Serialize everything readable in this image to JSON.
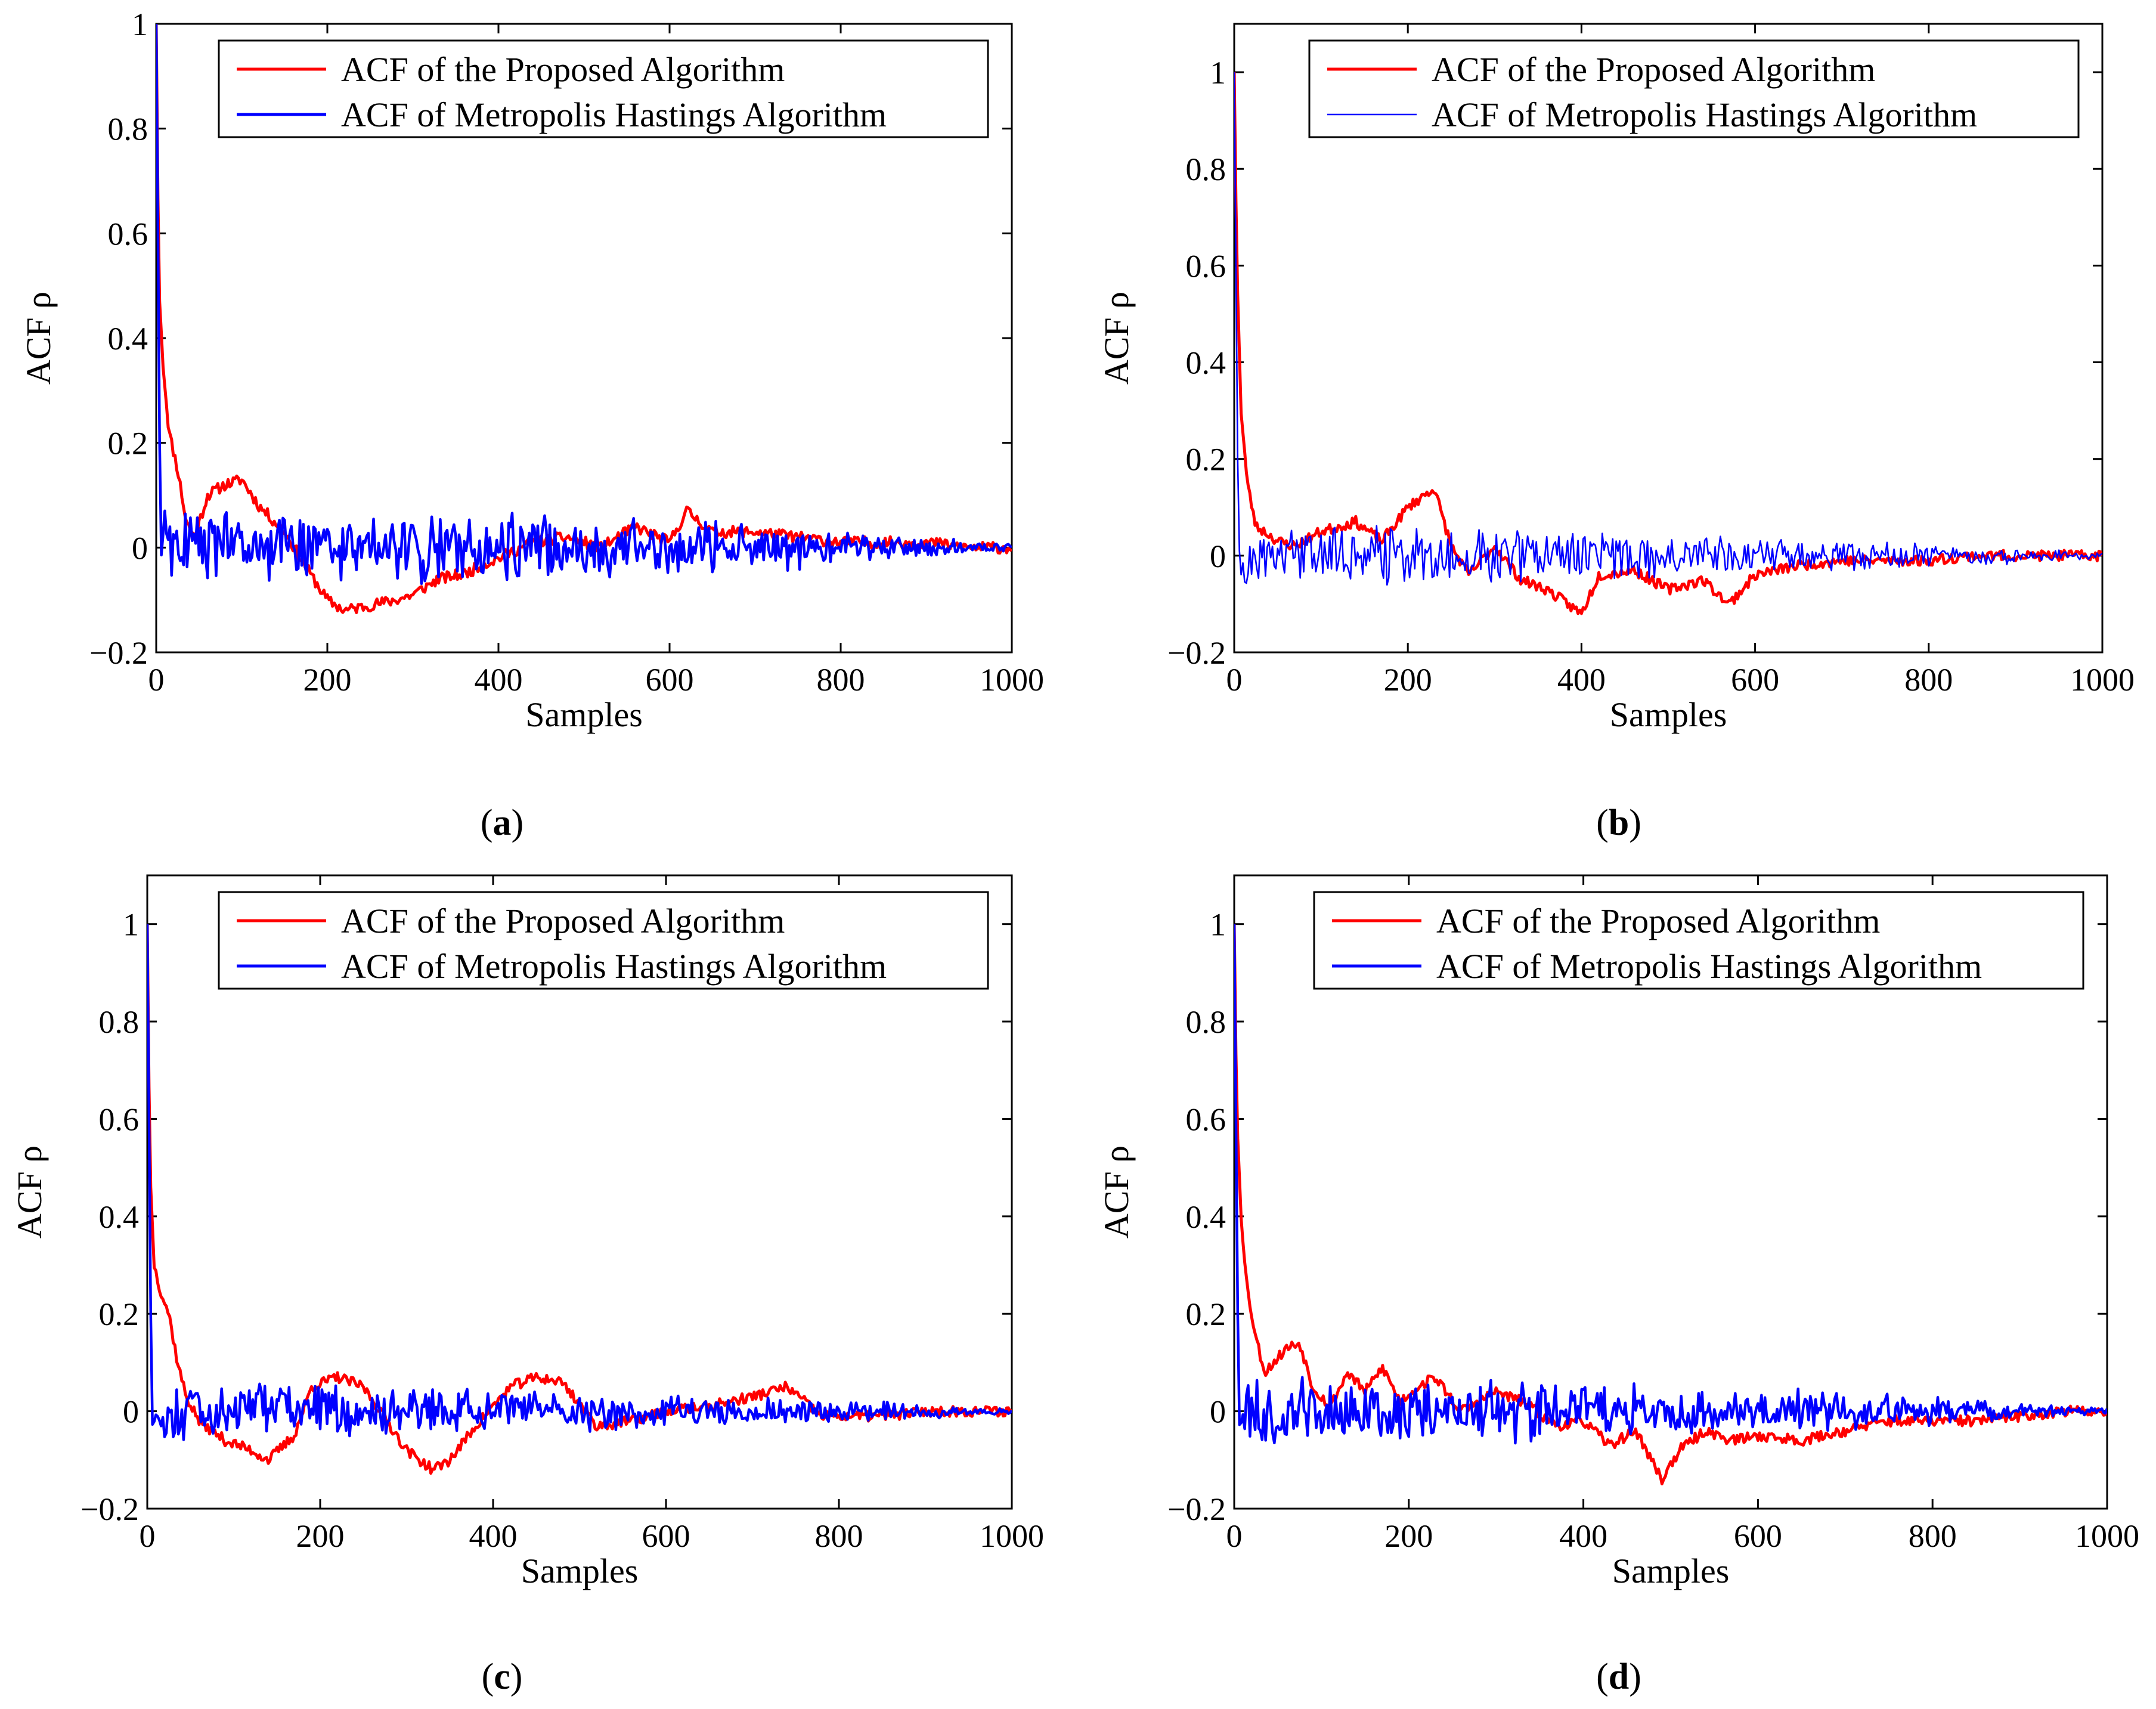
{
  "figure": {
    "legend_location": "top-right"
  },
  "colors": {
    "proposed": "#ff0000",
    "mh": "#0000ff",
    "axis": "#000000",
    "background": "#ffffff"
  },
  "chart_data": [
    {
      "panel": "a",
      "type": "line",
      "caption": "a",
      "caption_open": "(",
      "caption_close": ")",
      "xlabel": "Samples",
      "ylabel": "ACF ρ",
      "xlim": [
        0,
        1000
      ],
      "ylim": [
        -0.2,
        1.0
      ],
      "xticks": [
        0,
        200,
        400,
        600,
        800,
        1000
      ],
      "yticks": [
        -0.2,
        0,
        0.2,
        0.4,
        0.6,
        0.8,
        1
      ],
      "ytick_labels": [
        "−0.2",
        "0",
        "0.2",
        "0.4",
        "0.6",
        "0.8",
        "1"
      ],
      "grid": false,
      "legend": [
        "ACF of the Proposed Algorithm",
        "ACF of  Metropolis Hastings Algorithm"
      ],
      "mh_thick": true,
      "seed": 11,
      "series": [
        {
          "name": "ACF of the Proposed Algorithm",
          "color": "#ff0000",
          "x": [
            0,
            3,
            8,
            15,
            25,
            35,
            45,
            60,
            80,
            100,
            120,
            150,
            180,
            200,
            220,
            250,
            280,
            300,
            330,
            360,
            400,
            440,
            480,
            520,
            560,
            600,
            620,
            650,
            700,
            750,
            800,
            850,
            900,
            950,
            1000
          ],
          "y": [
            1.0,
            0.5,
            0.35,
            0.22,
            0.15,
            0.05,
            0.02,
            0.1,
            0.12,
            0.13,
            0.08,
            0.03,
            -0.05,
            -0.1,
            -0.12,
            -0.11,
            -0.1,
            -0.09,
            -0.06,
            -0.05,
            -0.02,
            0.01,
            0.02,
            0.0,
            0.04,
            0.01,
            0.07,
            0.03,
            0.03,
            0.02,
            0.01,
            0.01,
            0.01,
            0.0,
            0.0
          ]
        },
        {
          "name": "ACF of  Metropolis Hastings Algorithm",
          "color": "#0000ff",
          "x": [
            0,
            5,
            100,
            300,
            500,
            700,
            800,
            900,
            1000
          ],
          "y": [
            1.0,
            0.0,
            0,
            0,
            0,
            0,
            0,
            0,
            0
          ],
          "noise_amp": [
            0.05,
            0.05,
            0.05,
            0.055,
            0.045,
            0.035,
            0.025,
            0.015,
            0.005
          ]
        }
      ]
    },
    {
      "panel": "b",
      "type": "line",
      "caption": "b",
      "caption_open": "(",
      "caption_close": ")",
      "xlabel": "Samples",
      "ylabel": "ACF ρ",
      "xlim": [
        0,
        1000
      ],
      "ylim": [
        -0.2,
        1.1
      ],
      "xticks": [
        0,
        200,
        400,
        600,
        800,
        1000
      ],
      "yticks": [
        -0.2,
        0,
        0.2,
        0.4,
        0.6,
        0.8,
        1
      ],
      "ytick_labels": [
        "−0.2",
        "0",
        "0.2",
        "0.4",
        "0.6",
        "0.8",
        "1"
      ],
      "grid": false,
      "legend": [
        "ACF of the Proposed Algorithm",
        "ACF of  Metropolis Hastings Algorithm"
      ],
      "mh_thick": false,
      "seed": 23,
      "series": [
        {
          "name": "ACF of the Proposed Algorithm",
          "color": "#ff0000",
          "x": [
            0,
            3,
            8,
            15,
            25,
            35,
            50,
            70,
            100,
            140,
            170,
            200,
            230,
            250,
            270,
            300,
            330,
            360,
            400,
            420,
            460,
            500,
            540,
            570,
            600,
            650,
            700,
            750,
            800,
            850,
            900,
            950,
            1000
          ],
          "y": [
            1.0,
            0.6,
            0.3,
            0.15,
            0.06,
            0.05,
            0.03,
            0.02,
            0.05,
            0.07,
            0.03,
            0.1,
            0.14,
            0.02,
            -0.04,
            0.02,
            -0.05,
            -0.07,
            -0.12,
            -0.04,
            -0.03,
            -0.07,
            -0.05,
            -0.1,
            -0.04,
            -0.02,
            -0.01,
            -0.01,
            -0.01,
            0.0,
            0.0,
            0.0,
            0.0
          ]
        },
        {
          "name": "ACF of  Metropolis Hastings Algorithm",
          "color": "#0000ff",
          "x": [
            0,
            5,
            100,
            300,
            500,
            700,
            800,
            900,
            1000
          ],
          "y": [
            1.0,
            0.0,
            0,
            0,
            0,
            0,
            0,
            0,
            0
          ],
          "noise_amp": [
            0.05,
            0.05,
            0.05,
            0.045,
            0.035,
            0.025,
            0.02,
            0.012,
            0.005
          ]
        }
      ]
    },
    {
      "panel": "c",
      "type": "line",
      "caption": "c",
      "caption_open": "(",
      "caption_close": ")",
      "xlabel": "Samples",
      "ylabel": "ACF ρ",
      "xlim": [
        0,
        1000
      ],
      "ylim": [
        -0.2,
        1.1
      ],
      "xticks": [
        0,
        200,
        400,
        600,
        800,
        1000
      ],
      "yticks": [
        -0.2,
        0,
        0.2,
        0.4,
        0.6,
        0.8,
        1
      ],
      "ytick_labels": [
        "−0.2",
        "0",
        "0.2",
        "0.4",
        "0.6",
        "0.8",
        "1"
      ],
      "grid": false,
      "legend": [
        "ACF of the Proposed Algorithm",
        "ACF of  Metropolis Hastings Algorithm"
      ],
      "mh_thick": true,
      "seed": 37,
      "series": [
        {
          "name": "ACF of the Proposed Algorithm",
          "color": "#ff0000",
          "x": [
            0,
            3,
            8,
            15,
            25,
            35,
            45,
            60,
            90,
            120,
            140,
            170,
            190,
            220,
            250,
            270,
            300,
            330,
            350,
            380,
            420,
            450,
            480,
            520,
            560,
            600,
            650,
            700,
            740,
            780,
            850,
            900,
            950,
            1000
          ],
          "y": [
            1.0,
            0.5,
            0.3,
            0.25,
            0.2,
            0.1,
            0.03,
            -0.02,
            -0.06,
            -0.08,
            -0.1,
            -0.05,
            0.05,
            0.07,
            0.05,
            0.0,
            -0.08,
            -0.12,
            -0.1,
            -0.03,
            0.05,
            0.07,
            0.06,
            -0.03,
            -0.02,
            0.0,
            0.01,
            0.03,
            0.05,
            -0.01,
            -0.01,
            0.0,
            0.0,
            0.0
          ]
        },
        {
          "name": "ACF of  Metropolis Hastings Algorithm",
          "color": "#0000ff",
          "x": [
            0,
            5,
            100,
            300,
            500,
            700,
            800,
            900,
            1000
          ],
          "y": [
            1.0,
            0.0,
            0,
            0,
            0,
            0,
            0,
            0,
            0
          ],
          "noise_amp": [
            0.05,
            0.05,
            0.045,
            0.04,
            0.03,
            0.022,
            0.018,
            0.012,
            0.004
          ]
        }
      ]
    },
    {
      "panel": "d",
      "type": "line",
      "caption": "d",
      "caption_open": "(",
      "caption_close": ")",
      "xlabel": "Samples",
      "ylabel": "ACF ρ",
      "xlim": [
        0,
        1000
      ],
      "ylim": [
        -0.2,
        1.1
      ],
      "xticks": [
        0,
        200,
        400,
        600,
        800,
        1000
      ],
      "yticks": [
        -0.2,
        0,
        0.2,
        0.4,
        0.6,
        0.8,
        1
      ],
      "ytick_labels": [
        "−0.2",
        "0",
        "0.2",
        "0.4",
        "0.6",
        "0.8",
        "1"
      ],
      "grid": false,
      "legend": [
        "ACF of the Proposed Algorithm",
        "ACF of  Metropolis Hastings Algorithm"
      ],
      "mh_thick": true,
      "seed": 53,
      "series": [
        {
          "name": "ACF of the Proposed Algorithm",
          "color": "#ff0000",
          "x": [
            0,
            3,
            8,
            15,
            25,
            35,
            45,
            60,
            75,
            90,
            110,
            130,
            150,
            170,
            190,
            210,
            230,
            260,
            300,
            330,
            370,
            400,
            430,
            460,
            490,
            510,
            540,
            570,
            600,
            650,
            700,
            750,
            800,
            850,
            900,
            950,
            1000
          ],
          "y": [
            1.0,
            0.6,
            0.4,
            0.25,
            0.15,
            0.08,
            0.1,
            0.13,
            0.14,
            0.05,
            0.01,
            0.08,
            0.04,
            0.09,
            0.02,
            0.05,
            0.07,
            0.0,
            0.04,
            0.02,
            -0.03,
            -0.02,
            -0.07,
            -0.04,
            -0.14,
            -0.08,
            -0.04,
            -0.06,
            -0.05,
            -0.06,
            -0.04,
            -0.02,
            -0.02,
            -0.02,
            -0.01,
            0.0,
            0.0
          ]
        },
        {
          "name": "ACF of  Metropolis Hastings Algorithm",
          "color": "#0000ff",
          "x": [
            0,
            5,
            100,
            300,
            500,
            700,
            800,
            900,
            1000
          ],
          "y": [
            1.0,
            0.0,
            0,
            0,
            0,
            0,
            0,
            0,
            0
          ],
          "noise_amp": [
            0.055,
            0.055,
            0.05,
            0.05,
            0.04,
            0.03,
            0.022,
            0.014,
            0.005
          ]
        }
      ]
    }
  ]
}
